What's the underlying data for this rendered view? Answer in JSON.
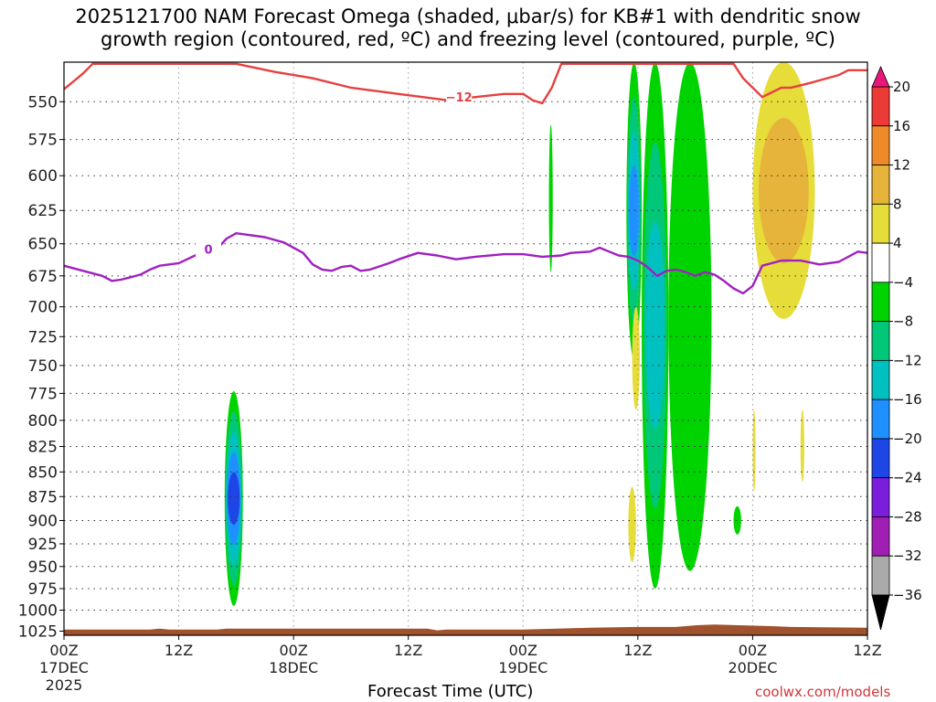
{
  "header": {
    "title_line1": "2025121700 NAM Forecast Omega (shaded, μbar/s) for KB#1 with dendritic snow",
    "title_line2": "growth region (contoured, red, ºC) and freezing level (contoured, purple, ºC)"
  },
  "footer": {
    "xlabel": "Forecast Time (UTC)",
    "credit": "coolwx.com/models"
  },
  "chart_data": {
    "type": "time-height contour",
    "title": "2025121700 NAM Forecast Omega (shaded, μbar/s) for KB#1 with dendritic snow growth region (contoured, red, ºC) and freezing level (contoured, purple, ºC)",
    "xlabel": "Forecast Time (UTC)",
    "ylabel": "",
    "x_unit": "hours from 2025-12-17 00Z",
    "x_range": [
      0,
      84
    ],
    "y_unit": "hPa",
    "y_range": [
      525,
      1030
    ],
    "y_scale": "log-pressure (inverted)",
    "grid": true,
    "y_ticks": [
      550,
      575,
      600,
      625,
      650,
      675,
      700,
      725,
      750,
      775,
      800,
      825,
      850,
      875,
      900,
      925,
      950,
      975,
      1000,
      1025
    ],
    "x_ticks": [
      {
        "hour": 0,
        "label": "00Z",
        "day": "17DEC",
        "year": "2025"
      },
      {
        "hour": 12,
        "label": "12Z",
        "day": "",
        "year": ""
      },
      {
        "hour": 24,
        "label": "00Z",
        "day": "18DEC",
        "year": ""
      },
      {
        "hour": 36,
        "label": "12Z",
        "day": "",
        "year": ""
      },
      {
        "hour": 48,
        "label": "00Z",
        "day": "19DEC",
        "year": ""
      },
      {
        "hour": 60,
        "label": "12Z",
        "day": "",
        "year": ""
      },
      {
        "hour": 72,
        "label": "00Z",
        "day": "20DEC",
        "year": ""
      },
      {
        "hour": 84,
        "label": "12Z",
        "day": "",
        "year": ""
      }
    ],
    "colorbar": {
      "label_values": [
        20,
        16,
        12,
        8,
        4,
        -4,
        -8,
        -12,
        -16,
        -20,
        -24,
        -28,
        -32,
        -36
      ],
      "bins": [
        {
          "from": 20,
          "to": 24,
          "color": "#e8177a"
        },
        {
          "from": 16,
          "to": 20,
          "color": "#ec3a36"
        },
        {
          "from": 12,
          "to": 16,
          "color": "#ef8a28"
        },
        {
          "from": 8,
          "to": 12,
          "color": "#e6b43a"
        },
        {
          "from": 4,
          "to": 8,
          "color": "#e6dc3a"
        },
        {
          "from": -4,
          "to": 4,
          "color": "#ffffff"
        },
        {
          "from": -8,
          "to": -4,
          "color": "#00d400"
        },
        {
          "from": -12,
          "to": -8,
          "color": "#00c878"
        },
        {
          "from": -16,
          "to": -12,
          "color": "#00c0c0"
        },
        {
          "from": -20,
          "to": -16,
          "color": "#1e90ff"
        },
        {
          "from": -24,
          "to": -20,
          "color": "#1e46e6"
        },
        {
          "from": -28,
          "to": -24,
          "color": "#7a1edc"
        },
        {
          "from": -32,
          "to": -28,
          "color": "#a01eb4"
        },
        {
          "from": -36,
          "to": -32,
          "color": "#aaaaaa"
        },
        {
          "from": -40,
          "to": -36,
          "color": "#000000"
        }
      ]
    },
    "contours": [
      {
        "field": "temperature",
        "value": -12,
        "label": "−12",
        "label_at": [
          41.3,
          547
        ],
        "color": "#e64040",
        "points": [
          [
            0,
            542
          ],
          [
            1,
            537
          ],
          [
            2,
            532
          ],
          [
            3,
            526
          ],
          [
            18,
            526
          ],
          [
            22,
            531
          ],
          [
            26,
            535
          ],
          [
            30,
            541
          ],
          [
            35,
            545
          ],
          [
            40,
            549
          ],
          [
            43,
            547
          ],
          [
            46,
            545
          ],
          [
            48,
            545
          ],
          [
            49,
            549
          ],
          [
            50,
            551
          ],
          [
            51,
            541
          ],
          [
            52,
            526
          ],
          [
            70,
            526
          ],
          [
            71,
            535
          ],
          [
            73,
            547
          ],
          [
            74,
            544
          ],
          [
            75,
            541
          ],
          [
            76,
            541
          ],
          [
            78,
            538
          ],
          [
            81,
            533
          ],
          [
            82,
            530
          ],
          [
            84,
            530
          ]
        ]
      },
      {
        "field": "temperature",
        "value": 0,
        "label": "0",
        "label_at": [
          15.1,
          654
        ],
        "color": "#a020c0",
        "points": [
          [
            0,
            667
          ],
          [
            2,
            671
          ],
          [
            4,
            675
          ],
          [
            5,
            679
          ],
          [
            6,
            678
          ],
          [
            7,
            676
          ],
          [
            8,
            674
          ],
          [
            9,
            670
          ],
          [
            10,
            667
          ],
          [
            12,
            665
          ],
          [
            14,
            658
          ],
          [
            16,
            654
          ],
          [
            17,
            646
          ],
          [
            18,
            642
          ],
          [
            19,
            643
          ],
          [
            21,
            645
          ],
          [
            23,
            649
          ],
          [
            25,
            657
          ],
          [
            26,
            666
          ],
          [
            27,
            670
          ],
          [
            28,
            671
          ],
          [
            29,
            668
          ],
          [
            30,
            667
          ],
          [
            31,
            671
          ],
          [
            32,
            670
          ],
          [
            34,
            665
          ],
          [
            35,
            662
          ],
          [
            37,
            657
          ],
          [
            39,
            659
          ],
          [
            41,
            662
          ],
          [
            43,
            660
          ],
          [
            46,
            658
          ],
          [
            48,
            658
          ],
          [
            50,
            660
          ],
          [
            52,
            659
          ],
          [
            53,
            657
          ],
          [
            55,
            656
          ],
          [
            56,
            653
          ],
          [
            57,
            656
          ],
          [
            58,
            659
          ],
          [
            59,
            660
          ],
          [
            60,
            663
          ],
          [
            61,
            668
          ],
          [
            62,
            675
          ],
          [
            63,
            671
          ],
          [
            64,
            670
          ],
          [
            65,
            672
          ],
          [
            66,
            675
          ],
          [
            67,
            672
          ],
          [
            68,
            674
          ],
          [
            69,
            679
          ],
          [
            70,
            685
          ],
          [
            71,
            689
          ],
          [
            72,
            683
          ],
          [
            73,
            667
          ],
          [
            75,
            663
          ],
          [
            77,
            663
          ],
          [
            79,
            666
          ],
          [
            81,
            664
          ],
          [
            83,
            656
          ],
          [
            84,
            657
          ]
        ]
      }
    ],
    "omega_regions": [
      {
        "time": [
          16.8,
          18.7
        ],
        "pressure": [
          773,
          995
        ],
        "min_value": -23,
        "note": "rising motion cell centered ~885 hPa near 17DEC 17Z"
      },
      {
        "time": [
          50.7,
          51.1
        ],
        "pressure": [
          565,
          672
        ],
        "min_value": -6
      },
      {
        "time": [
          58.8,
          60.4
        ],
        "pressure": [
          525,
          745
        ],
        "min_value": -19
      },
      {
        "time": [
          60.4,
          63.2
        ],
        "pressure": [
          525,
          975
        ],
        "min_value": -14
      },
      {
        "time": [
          63.2,
          67.7
        ],
        "pressure": [
          525,
          955
        ],
        "min_value": -7
      },
      {
        "time": [
          70.0,
          70.8
        ],
        "pressure": [
          885,
          915
        ],
        "min_value": -6
      },
      {
        "time": [
          72.0,
          78.5
        ],
        "pressure": [
          525,
          710
        ],
        "max_value": 10,
        "note": "sinking motion above 700 hPa on 20DEC"
      },
      {
        "time": [
          59.4,
          60.2
        ],
        "pressure": [
          700,
          790
        ],
        "max_value": 6
      },
      {
        "time": [
          59.0,
          59.8
        ],
        "pressure": [
          865,
          945
        ],
        "max_value": 6
      },
      {
        "time": [
          72.0,
          72.3
        ],
        "pressure": [
          790,
          870
        ],
        "max_value": 5
      },
      {
        "time": [
          77.0,
          77.4
        ],
        "pressure": [
          790,
          860
        ],
        "max_value": 5
      }
    ],
    "terrain": {
      "color": "#a0522d",
      "top_hPa": [
        [
          0,
          1023
        ],
        [
          9,
          1023
        ],
        [
          10,
          1022
        ],
        [
          11,
          1023
        ],
        [
          16,
          1023
        ],
        [
          17,
          1022
        ],
        [
          28,
          1022
        ],
        [
          38,
          1022
        ],
        [
          39,
          1024
        ],
        [
          40,
          1023
        ],
        [
          48,
          1023
        ],
        [
          55,
          1021
        ],
        [
          60,
          1020
        ],
        [
          64,
          1020
        ],
        [
          66,
          1018
        ],
        [
          68,
          1017
        ],
        [
          71,
          1018
        ],
        [
          74,
          1019
        ],
        [
          76,
          1020
        ],
        [
          84,
          1021
        ]
      ]
    }
  }
}
